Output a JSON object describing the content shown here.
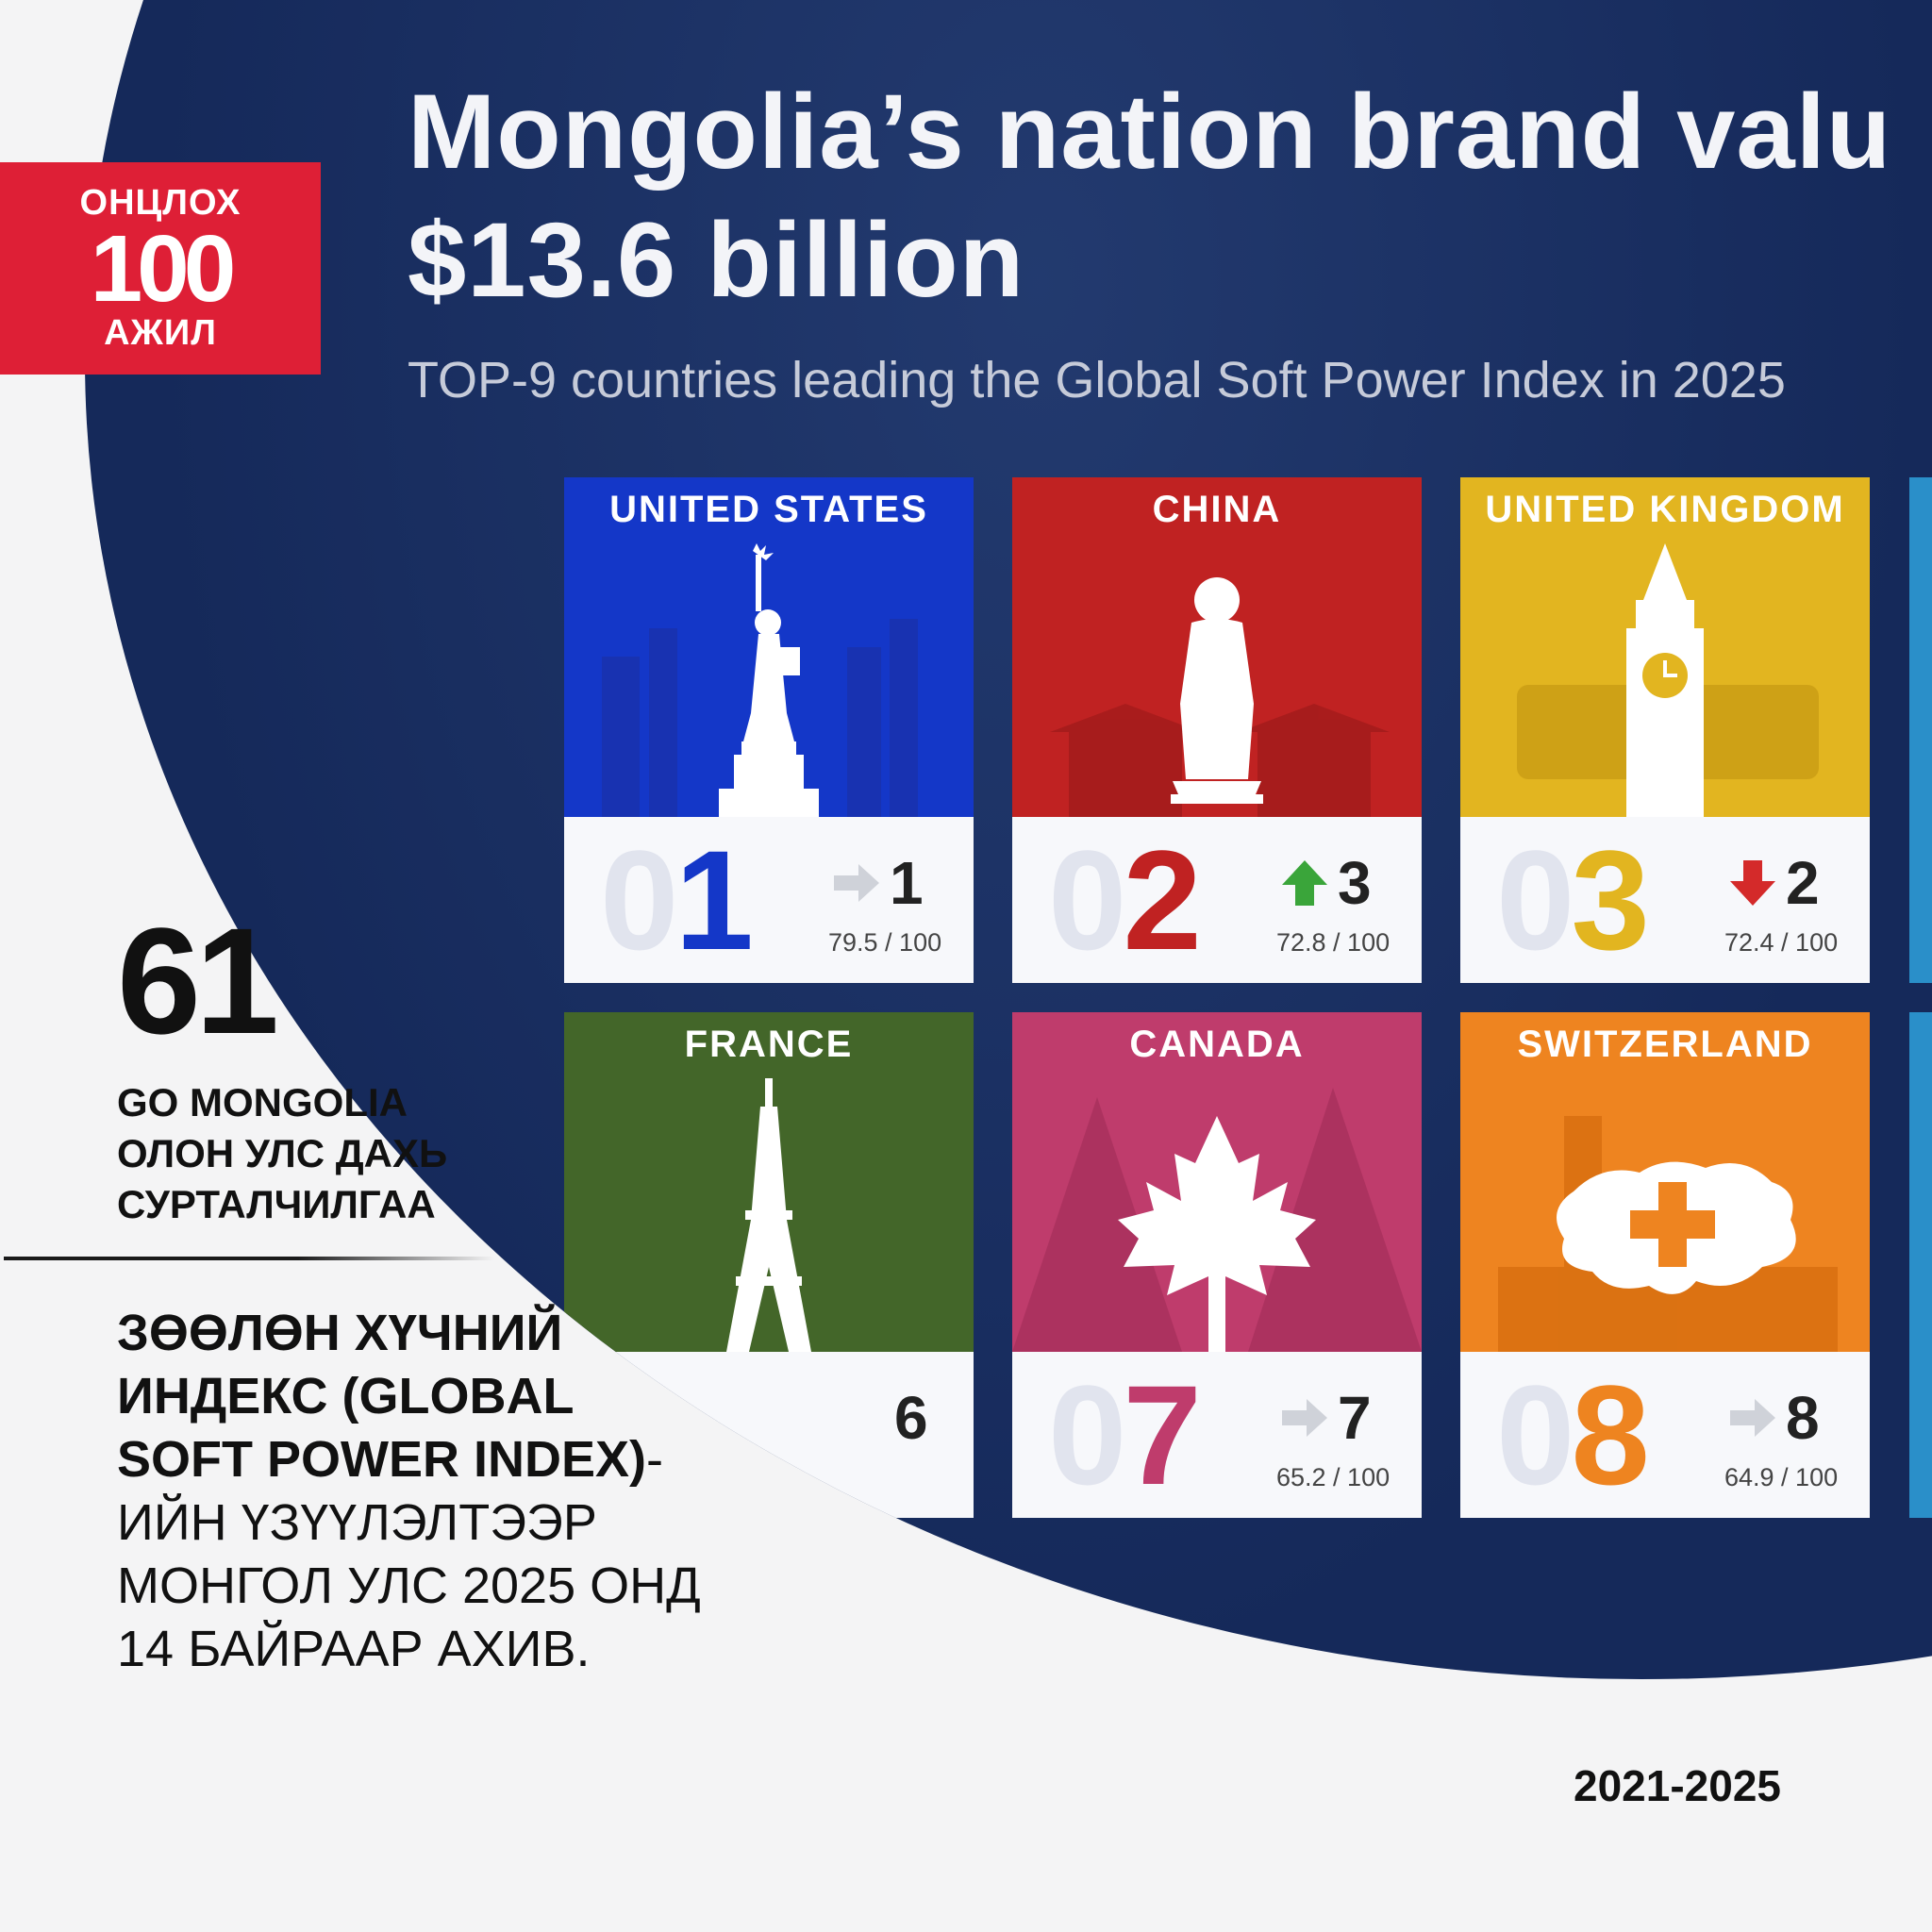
{
  "logo": {
    "top_text": "ОНЦЛОХ",
    "number": "100",
    "bottom_text": "АЖИЛ",
    "color": "#de1f36"
  },
  "item_number": "61",
  "category": [
    "GO MONGOLIA",
    "ОЛОН УЛС ДАХЬ",
    "СУРТАЛЧИЛГАА"
  ],
  "description": {
    "bold": "ЗӨӨЛӨН ХҮЧНИЙ ИНДЕКС (GLOBAL SOFT POWER INDEX)",
    "rest": "-ИЙН ҮЗҮҮЛЭЛТЭЭР МОНГОЛ УЛС 2025 ОНД 14 БАЙРААР АХИВ."
  },
  "period": "2021-2025",
  "infographic": {
    "title_line1": "Mongolia’s nation brand valu",
    "title_line2": "$13.6 billion",
    "subtitle": "TOP-9 countries leading the Global Soft Power Index in 2025",
    "tiles": [
      {
        "country": "UNITED STATES",
        "rank_lead": "0",
        "rank_digit": "1",
        "prev_rank": "1",
        "score": "79.5 / 100",
        "trend": "same",
        "color": "#1437c8",
        "rank_color": "#1437c8",
        "icon": "statue-of-liberty-icon"
      },
      {
        "country": "CHINA",
        "rank_lead": "0",
        "rank_digit": "2",
        "prev_rank": "3",
        "score": "72.8 / 100",
        "trend": "up",
        "color": "#c02222",
        "rank_color": "#c02222",
        "icon": "confucius-statue-icon"
      },
      {
        "country": "UNITED KINGDOM",
        "rank_lead": "0",
        "rank_digit": "3",
        "prev_rank": "2",
        "score": "72.4 / 100",
        "trend": "down",
        "color": "#e2b520",
        "rank_color": "#e2b520",
        "icon": "big-ben-icon"
      },
      {
        "country": "FRANCE",
        "prev_rank_partial": "6",
        "color": "#436629",
        "icon": "eiffel-tower-icon"
      },
      {
        "country": "CANADA",
        "rank_lead": "0",
        "rank_digit": "7",
        "prev_rank": "7",
        "score": "65.2 / 100",
        "trend": "same",
        "color": "#bf3c6c",
        "rank_color": "#bf3c6c",
        "icon": "maple-leaf-icon"
      },
      {
        "country": "SWITZERLAND",
        "rank_lead": "0",
        "rank_digit": "8",
        "prev_rank": "8",
        "score": "64.9 / 100",
        "trend": "same",
        "color": "#ee8420",
        "rank_color": "#ee8420",
        "icon": "swiss-map-icon"
      }
    ],
    "trend_colors": {
      "same": "#cfd2d9",
      "up": "#3aa53a",
      "down": "#d42a2a"
    },
    "panel_color": "#15295a"
  }
}
